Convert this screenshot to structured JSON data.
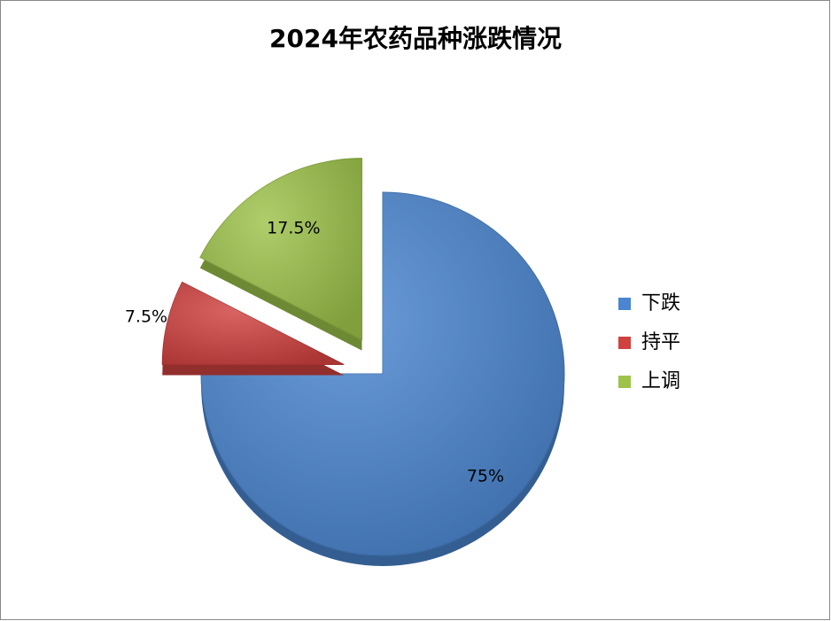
{
  "chart_data": {
    "type": "pie",
    "title": "2024年农药品种涨跌情况",
    "categories": [
      "下跌",
      "持平",
      "上调"
    ],
    "values": [
      75,
      7.5,
      17.5
    ],
    "value_labels": [
      "75%",
      "7.5%",
      "17.5%"
    ],
    "colors": [
      "#4a86d0",
      "#d0413f",
      "#9dc34a"
    ],
    "legend": "right"
  }
}
